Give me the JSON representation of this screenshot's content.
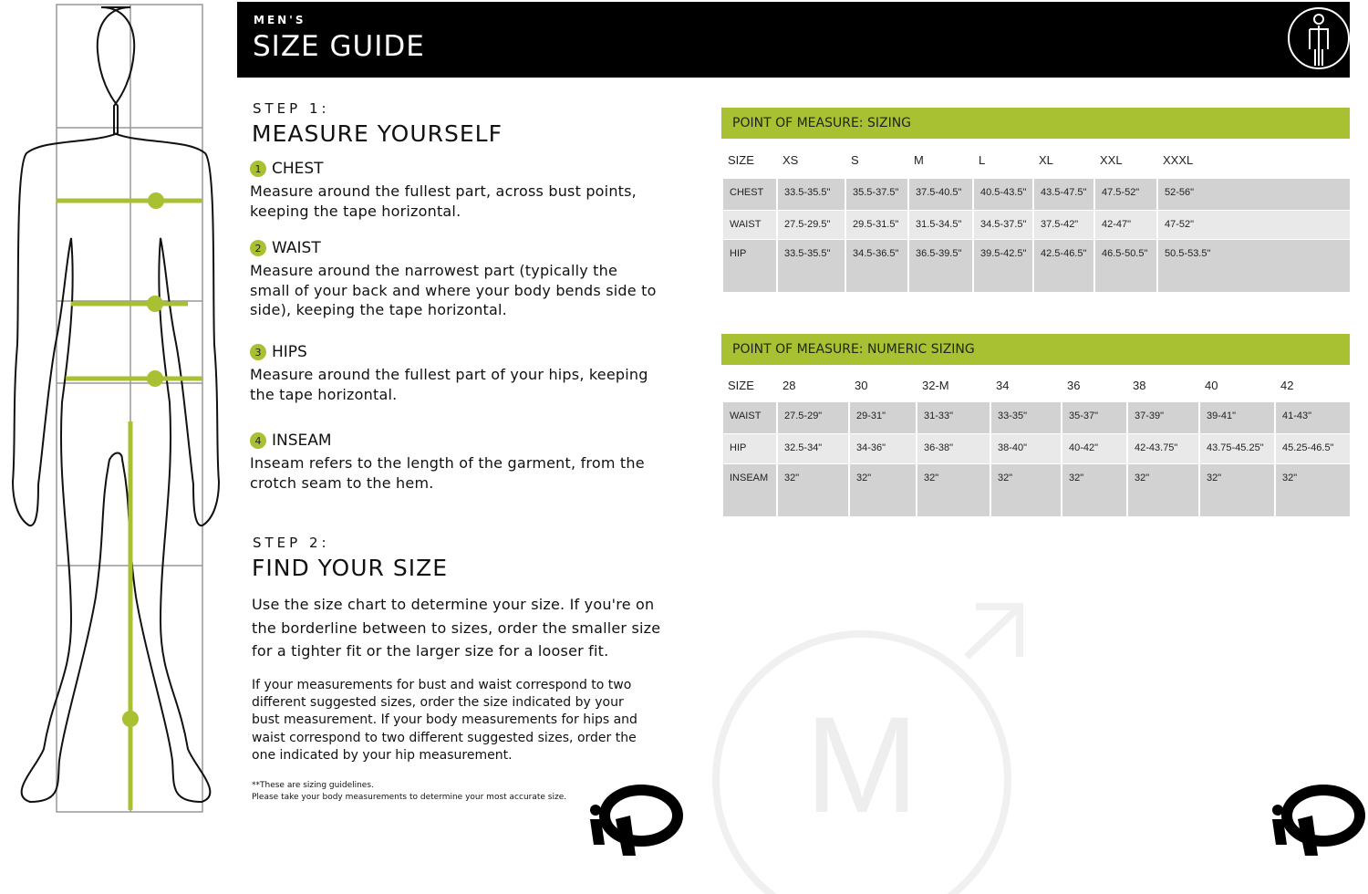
{
  "header": {
    "kicker": "MEN'S",
    "title": "SIZE GUIDE",
    "icon": "person-measure-icon"
  },
  "step1": {
    "label": "STEP 1:",
    "title": "MEASURE YOURSELF",
    "items": [
      {
        "num": "1",
        "name": "CHEST",
        "text": "Measure around the fullest part, across bust points, keeping the tape horizontal."
      },
      {
        "num": "2",
        "name": "WAIST",
        "text": "Measure around the narrowest part (typically the small of your back and where your body bends side to side), keeping the tape horizontal."
      },
      {
        "num": "3",
        "name": "HIPS",
        "text": "Measure around the fullest part of your hips, keeping the tape horizontal."
      },
      {
        "num": "4",
        "name": "INSEAM",
        "text": "Inseam refers to the length of the garment, from the crotch seam to the hem."
      }
    ]
  },
  "step2": {
    "label": "STEP 2:",
    "title": "FIND YOUR SIZE",
    "text": "Use the size chart to determine your size. If you're on the borderline between to sizes, order the smaller size for a tighter fit or the larger size for a looser fit.",
    "text2": "If your measurements for bust and waist correspond to two different suggested sizes, order the size indicated by your bust measurement. If your body measurements for hips and waist correspond to two different suggested sizes, order the one indicated by your hip measurement.",
    "note1": "**These are sizing guidelines.",
    "note2": "Please take your body measurements to determine your most accurate size."
  },
  "sizing": {
    "title": "POINT OF MEASURE: SIZING",
    "headers": [
      "SIZE",
      "XS",
      "S",
      "M",
      "L",
      "XL",
      "XXL",
      "XXXL"
    ],
    "rows": [
      [
        "CHEST",
        "33.5-35.5\"",
        "35.5-37.5\"",
        "37.5-40.5\"",
        "40.5-43.5\"",
        "43.5-47.5\"",
        "47.5-52\"",
        "52-56\""
      ],
      [
        "WAIST",
        "27.5-29.5\"",
        "29.5-31.5\"",
        "31.5-34.5\"",
        "34.5-37.5\"",
        "37.5-42\"",
        "42-47\"",
        "47-52\""
      ],
      [
        "HIP",
        "33.5-35.5\"",
        "34.5-36.5\"",
        "36.5-39.5\"",
        "39.5-42.5\"",
        "42.5-46.5\"",
        "46.5-50.5\"",
        "50.5-53.5\""
      ]
    ]
  },
  "numeric": {
    "title": "POINT OF MEASURE: NUMERIC SIZING",
    "headers": [
      "SIZE",
      "28",
      "30",
      "32-M",
      "34",
      "36",
      "38",
      "40",
      "42"
    ],
    "rows": [
      [
        "WAIST",
        "27.5-29\"",
        "29-31\"",
        "31-33\"",
        "33-35\"",
        "35-37\"",
        "37-39\"",
        "39-41\"",
        "41-43\""
      ],
      [
        "HIP",
        "32.5-34\"",
        "34-36\"",
        "36-38\"",
        "38-40\"",
        "40-42\"",
        "42-43.75\"",
        "43.75-45.25\"",
        "45.25-46.5\""
      ],
      [
        "INSEAM",
        "32\"",
        "32\"",
        "32\"",
        "32\"",
        "32\"",
        "32\"",
        "32\"",
        "32\""
      ]
    ]
  },
  "watermark": {
    "letter": "M"
  },
  "logo": {
    "icon": "pearl-izumi-logo"
  },
  "colors": {
    "accent": "#a8c132",
    "row_dark": "#d2d2d2",
    "row_light": "#e9e9e9",
    "header_bg": "#000000"
  }
}
